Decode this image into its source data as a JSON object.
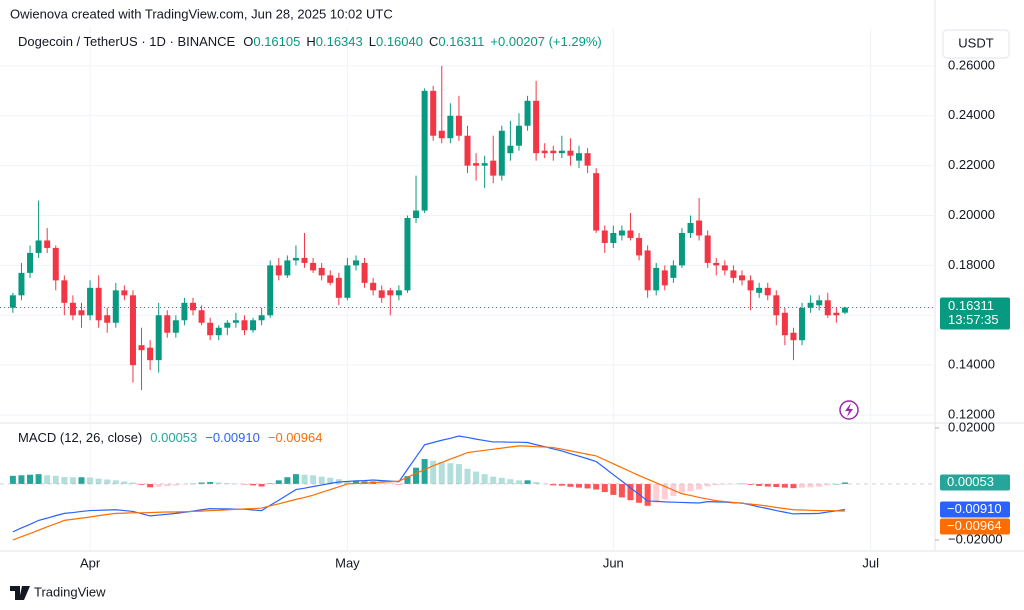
{
  "chart_data": [
    {
      "type": "candlestick",
      "attribution": "Owienova created with TradingView.com, Jun 28, 2025 10:02 UTC",
      "title": "Dogecoin / TetherUS · 1D · BINANCE",
      "ohlc_labels": [
        "O",
        "H",
        "L",
        "C"
      ],
      "last_labels": [
        "0.16105",
        "0.16343",
        "0.16040",
        "0.16311"
      ],
      "change": "+0.00207 (+1.29%)",
      "currency": "USDT",
      "countdown": "13:57:35",
      "brand": "TradingView",
      "up_color": "#089981",
      "down_color": "#f23645",
      "categories": [
        null,
        null,
        null,
        null,
        null,
        null,
        null,
        null,
        null,
        null,
        null,
        null,
        null,
        null,
        null,
        null,
        null,
        null,
        null,
        null,
        null,
        null,
        null,
        null,
        null,
        null,
        null,
        null,
        null,
        null,
        null,
        null,
        null,
        null,
        null,
        null,
        null,
        null,
        null,
        null,
        null,
        null,
        null,
        null,
        null,
        null,
        null,
        null,
        null,
        null,
        null,
        null,
        null,
        null,
        null,
        null,
        null,
        null,
        null,
        null,
        null,
        null,
        null,
        null,
        null,
        null,
        null,
        null,
        null,
        null,
        null,
        null,
        null,
        null,
        null,
        null,
        null,
        null,
        null,
        null,
        null,
        null,
        null,
        null,
        null,
        null,
        null,
        null,
        null,
        null,
        null,
        null,
        null,
        null,
        null,
        null,
        null,
        null
      ],
      "open": [
        0.163,
        0.168,
        0.177,
        0.185,
        0.19,
        0.187,
        0.174,
        0.165,
        0.162,
        0.16,
        0.171,
        0.16,
        0.157,
        0.17,
        0.168,
        0.148,
        0.147,
        0.142,
        0.16,
        0.153,
        0.158,
        0.165,
        0.162,
        0.157,
        0.152,
        0.155,
        0.157,
        0.158,
        0.154,
        0.158,
        0.16,
        0.18,
        0.176,
        0.182,
        0.183,
        0.181,
        0.179,
        0.176,
        0.175,
        0.167,
        0.18,
        0.181,
        0.173,
        0.17,
        0.17,
        0.168,
        0.17,
        0.199,
        0.202,
        0.25,
        0.234,
        0.231,
        0.24,
        0.232,
        0.221,
        0.22,
        0.222,
        0.216,
        0.225,
        0.228,
        0.236,
        0.246,
        0.226,
        0.226,
        0.225,
        0.226,
        0.222,
        0.225,
        0.217,
        0.194,
        0.189,
        0.192,
        0.194,
        0.191,
        0.186,
        0.17,
        0.178,
        0.175,
        0.18,
        0.193,
        0.198,
        0.192,
        0.181,
        0.18,
        0.178,
        0.176,
        0.174,
        0.169,
        0.171,
        0.168,
        0.161,
        0.153,
        0.15,
        0.163,
        0.164,
        0.166,
        0.161,
        0.16105
      ],
      "high": [
        0.169,
        0.181,
        0.188,
        0.206,
        0.195,
        0.188,
        0.176,
        0.168,
        0.165,
        0.174,
        0.176,
        0.163,
        0.173,
        0.172,
        0.17,
        0.155,
        0.15,
        0.165,
        0.162,
        0.16,
        0.167,
        0.167,
        0.164,
        0.159,
        0.156,
        0.158,
        0.161,
        0.16,
        0.159,
        0.163,
        0.182,
        0.183,
        0.184,
        0.188,
        0.193,
        0.183,
        0.181,
        0.178,
        0.177,
        0.183,
        0.184,
        0.183,
        0.175,
        0.172,
        0.171,
        0.172,
        0.2,
        0.216,
        0.251,
        0.252,
        0.26,
        0.245,
        0.248,
        0.236,
        0.225,
        0.224,
        0.232,
        0.236,
        0.238,
        0.241,
        0.248,
        0.254,
        0.229,
        0.228,
        0.232,
        0.231,
        0.228,
        0.227,
        0.219,
        0.196,
        0.196,
        0.196,
        0.201,
        0.193,
        0.188,
        0.181,
        0.18,
        0.182,
        0.195,
        0.2,
        0.207,
        0.194,
        0.183,
        0.182,
        0.18,
        0.178,
        0.176,
        0.173,
        0.173,
        0.17,
        0.163,
        0.155,
        0.165,
        0.168,
        0.168,
        0.169,
        0.163,
        0.16343
      ],
      "low": [
        0.161,
        0.166,
        0.175,
        0.183,
        0.185,
        0.17,
        0.16,
        0.158,
        0.155,
        0.158,
        0.155,
        0.153,
        0.155,
        0.166,
        0.133,
        0.13,
        0.138,
        0.137,
        0.151,
        0.151,
        0.156,
        0.16,
        0.156,
        0.15,
        0.15,
        0.152,
        0.155,
        0.152,
        0.153,
        0.156,
        0.159,
        0.174,
        0.175,
        0.18,
        0.179,
        0.177,
        0.174,
        0.172,
        0.164,
        0.166,
        0.178,
        0.171,
        0.168,
        0.165,
        0.16,
        0.166,
        0.169,
        0.197,
        0.201,
        0.23,
        0.229,
        0.229,
        0.23,
        0.217,
        0.214,
        0.211,
        0.213,
        0.214,
        0.222,
        0.226,
        0.234,
        0.222,
        0.223,
        0.222,
        0.223,
        0.22,
        0.219,
        0.217,
        0.193,
        0.185,
        0.187,
        0.19,
        0.19,
        0.182,
        0.167,
        0.168,
        0.17,
        0.173,
        0.179,
        0.191,
        0.19,
        0.179,
        0.176,
        0.176,
        0.173,
        0.172,
        0.162,
        0.167,
        0.166,
        0.156,
        0.148,
        0.142,
        0.148,
        0.161,
        0.162,
        0.159,
        0.157,
        0.1604
      ],
      "close": [
        0.168,
        0.177,
        0.185,
        0.19,
        0.187,
        0.174,
        0.165,
        0.16,
        0.16,
        0.171,
        0.158,
        0.157,
        0.17,
        0.168,
        0.14,
        0.146,
        0.142,
        0.16,
        0.153,
        0.158,
        0.165,
        0.162,
        0.157,
        0.152,
        0.155,
        0.157,
        0.158,
        0.154,
        0.158,
        0.16,
        0.18,
        0.176,
        0.182,
        0.183,
        0.181,
        0.178,
        0.176,
        0.173,
        0.167,
        0.18,
        0.182,
        0.173,
        0.17,
        0.167,
        0.168,
        0.17,
        0.199,
        0.202,
        0.25,
        0.232,
        0.231,
        0.24,
        0.232,
        0.22,
        0.22,
        0.221,
        0.216,
        0.234,
        0.228,
        0.236,
        0.246,
        0.225,
        0.225,
        0.225,
        0.226,
        0.224,
        0.225,
        0.22,
        0.194,
        0.189,
        0.193,
        0.194,
        0.191,
        0.184,
        0.17,
        0.179,
        0.172,
        0.18,
        0.193,
        0.197,
        0.192,
        0.181,
        0.18,
        0.178,
        0.175,
        0.174,
        0.17,
        0.171,
        0.168,
        0.16,
        0.152,
        0.15,
        0.163,
        0.165,
        0.166,
        0.16,
        0.16,
        0.16311
      ],
      "xlim": [
        -1.5,
        107.5
      ],
      "xticks": [
        {
          "value": 9,
          "label": "Apr"
        },
        {
          "value": 39,
          "label": "May"
        },
        {
          "value": 70,
          "label": "Jun"
        },
        {
          "value": 100,
          "label": "Jul"
        }
      ],
      "ylim": [
        0.1172,
        0.2752
      ],
      "yticks": [
        {
          "value": 0.12,
          "label": "0.12000"
        },
        {
          "value": 0.14,
          "label": "0.14000"
        },
        {
          "value": 0.16,
          "label": "0.16000"
        },
        {
          "value": 0.18,
          "label": "0.18000"
        },
        {
          "value": 0.2,
          "label": "0.20000"
        },
        {
          "value": 0.22,
          "label": "0.22000"
        },
        {
          "value": 0.24,
          "label": "0.24000"
        },
        {
          "value": 0.26,
          "label": "0.26000"
        }
      ],
      "grid": true
    },
    {
      "type": "macd",
      "title": "MACD (12, 26, close)",
      "histogram": {
        "colors": {
          "pos_up": "#26a69a",
          "pos_down": "#b2dfdb",
          "neg_down": "#ff5252",
          "neg_up": "#ffcdd2"
        },
        "values": [
          0.0029,
          0.0031,
          0.0033,
          0.0035,
          0.0031,
          0.0029,
          0.0025,
          0.0024,
          0.0024,
          0.0023,
          0.0019,
          0.0016,
          0.0013,
          0.0009,
          0.0005,
          -0.0003,
          -0.0012,
          -0.001,
          -0.0008,
          -0.0005,
          -0.0002,
          0.0001,
          0.0005,
          0.0007,
          0.0005,
          0.0003,
          0.0001,
          -0.0001,
          -0.0005,
          -0.0009,
          0.0002,
          0.0013,
          0.0024,
          0.0035,
          0.0033,
          0.0031,
          0.0026,
          0.0022,
          0.0017,
          0.0009,
          0.0009,
          0.0009,
          0.0009,
          0.0005,
          0.0002,
          -0.0002,
          0.0028,
          0.0058,
          0.0089,
          0.0083,
          0.0079,
          0.0074,
          0.0071,
          0.0054,
          0.0044,
          0.0035,
          0.0026,
          0.0022,
          0.0017,
          0.0013,
          0.0013,
          0.0007,
          0.0001,
          -0.0005,
          -0.0006,
          -0.001,
          -0.0013,
          -0.0016,
          -0.002,
          -0.0029,
          -0.0039,
          -0.0048,
          -0.0058,
          -0.0067,
          -0.0078,
          -0.0066,
          -0.0055,
          -0.0043,
          -0.0031,
          -0.0026,
          -0.002,
          -0.0009,
          -0.0004,
          -0.0002,
          -0.0001,
          0.0001,
          -0.0003,
          -0.0007,
          -0.0009,
          -0.0011,
          -0.0013,
          -0.0015,
          -0.0013,
          -0.0012,
          -0.001,
          -0.0005,
          0.0,
          0.00053
        ]
      },
      "series": [
        {
          "color": "#2962ff",
          "last_label": "−0.00910",
          "values": [
            -0.0171,
            -0.0157,
            -0.0144,
            -0.013,
            -0.0122,
            -0.0113,
            -0.0105,
            -0.0102,
            -0.0098,
            -0.0095,
            -0.0094,
            -0.0093,
            -0.0092,
            -0.0095,
            -0.0098,
            -0.0106,
            -0.0114,
            -0.0111,
            -0.0108,
            -0.0105,
            -0.0101,
            -0.0097,
            -0.0092,
            -0.0088,
            -0.0089,
            -0.0089,
            -0.009,
            -0.009,
            -0.0093,
            -0.0095,
            -0.0076,
            -0.0058,
            -0.0039,
            -0.002,
            -0.0015,
            -0.0009,
            -0.0004,
            0.0002,
            0.0007,
            0.0009,
            0.0011,
            0.0012,
            0.0014,
            0.0012,
            0.001,
            0.0008,
            0.0052,
            0.0096,
            0.014,
            0.0148,
            0.0156,
            0.0163,
            0.0171,
            0.0166,
            0.016,
            0.0155,
            0.015,
            0.015,
            0.0149,
            0.0149,
            0.0148,
            0.014,
            0.0133,
            0.0125,
            0.0118,
            0.0108,
            0.0099,
            0.009,
            0.008,
            0.0057,
            0.0033,
            0.001,
            -0.0014,
            -0.0037,
            -0.0061,
            -0.0062,
            -0.0064,
            -0.0065,
            -0.0066,
            -0.0067,
            -0.0068,
            -0.0063,
            -0.0064,
            -0.0065,
            -0.0067,
            -0.0068,
            -0.0075,
            -0.0082,
            -0.0088,
            -0.0095,
            -0.0101,
            -0.0107,
            -0.0106,
            -0.0106,
            -0.0105,
            -0.01,
            -0.0096,
            -0.0091
          ]
        },
        {
          "color": "#ff6d00",
          "last_label": "−0.00964",
          "values": [
            -0.02,
            -0.0188,
            -0.0177,
            -0.0165,
            -0.0153,
            -0.0142,
            -0.013,
            -0.0126,
            -0.0122,
            -0.0118,
            -0.0113,
            -0.0109,
            -0.0105,
            -0.0104,
            -0.0103,
            -0.0103,
            -0.0102,
            -0.0101,
            -0.01,
            -0.01,
            -0.0099,
            -0.0098,
            -0.0097,
            -0.0095,
            -0.0094,
            -0.0092,
            -0.0091,
            -0.0089,
            -0.0088,
            -0.0086,
            -0.0078,
            -0.0071,
            -0.0063,
            -0.0055,
            -0.0048,
            -0.004,
            -0.003,
            -0.002,
            -0.001,
            0.0,
            0.0002,
            0.0003,
            0.0005,
            0.0007,
            0.0008,
            0.001,
            0.0024,
            0.0038,
            0.0051,
            0.0065,
            0.0077,
            0.0089,
            0.01,
            0.0112,
            0.0116,
            0.012,
            0.0124,
            0.0128,
            0.0132,
            0.0136,
            0.0135,
            0.0133,
            0.0132,
            0.013,
            0.0124,
            0.0118,
            0.0112,
            0.0106,
            0.01,
            0.0086,
            0.0072,
            0.0058,
            0.0044,
            0.003,
            0.0017,
            0.0004,
            -0.0009,
            -0.0022,
            -0.0035,
            -0.0041,
            -0.0048,
            -0.0054,
            -0.006,
            -0.0063,
            -0.0066,
            -0.0069,
            -0.0072,
            -0.0075,
            -0.0079,
            -0.0084,
            -0.0088,
            -0.0092,
            -0.0093,
            -0.0094,
            -0.0095,
            -0.0095,
            -0.0096,
            -0.00964
          ]
        }
      ],
      "ylim": [
        -0.02357,
        0.0214
      ],
      "yticks": [
        {
          "value": -0.02,
          "label": "−0.02000"
        },
        {
          "value": 0.02,
          "label": "0.02000"
        }
      ]
    }
  ]
}
